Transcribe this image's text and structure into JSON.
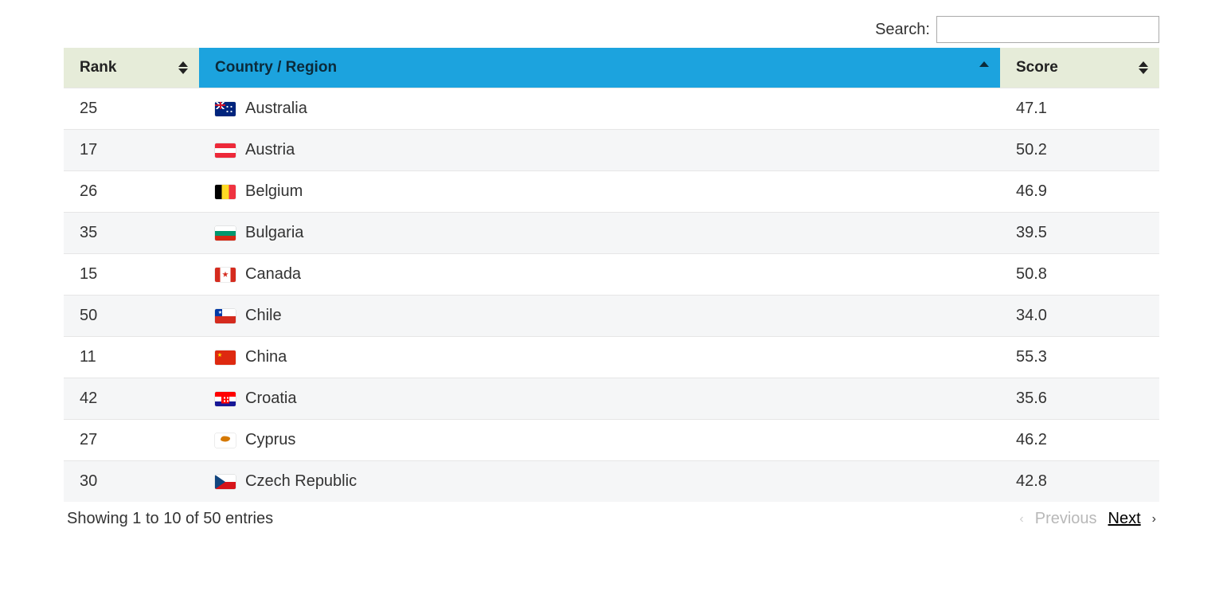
{
  "search": {
    "label": "Search:",
    "value": ""
  },
  "columns": [
    {
      "key": "rank",
      "label": "Rank",
      "widthClass": "col-rank",
      "sorted": false,
      "dir": "both"
    },
    {
      "key": "country",
      "label": "Country / Region",
      "widthClass": "col-country",
      "sorted": true,
      "dir": "asc"
    },
    {
      "key": "score",
      "label": "Score",
      "widthClass": "col-score",
      "sorted": false,
      "dir": "both"
    }
  ],
  "header_colors": {
    "default_bg": "#e6ecd9",
    "sorted_bg": "#1ca3de",
    "text": "#222"
  },
  "rows": [
    {
      "rank": "25",
      "country": "Australia",
      "flag": "au",
      "score": "47.1"
    },
    {
      "rank": "17",
      "country": "Austria",
      "flag": "at",
      "score": "50.2"
    },
    {
      "rank": "26",
      "country": "Belgium",
      "flag": "be",
      "score": "46.9"
    },
    {
      "rank": "35",
      "country": "Bulgaria",
      "flag": "bg",
      "score": "39.5"
    },
    {
      "rank": "15",
      "country": "Canada",
      "flag": "ca",
      "score": "50.8"
    },
    {
      "rank": "50",
      "country": "Chile",
      "flag": "cl",
      "score": "34.0"
    },
    {
      "rank": "11",
      "country": "China",
      "flag": "cn",
      "score": "55.3"
    },
    {
      "rank": "42",
      "country": "Croatia",
      "flag": "hr",
      "score": "35.6"
    },
    {
      "rank": "27",
      "country": "Cyprus",
      "flag": "cy",
      "score": "46.2"
    },
    {
      "rank": "30",
      "country": "Czech Republic",
      "flag": "cz",
      "score": "42.8"
    }
  ],
  "info": "Showing 1 to 10 of 50 entries",
  "paginate": {
    "previous": {
      "label": "Previous",
      "enabled": false
    },
    "next": {
      "label": "Next",
      "enabled": true
    }
  }
}
